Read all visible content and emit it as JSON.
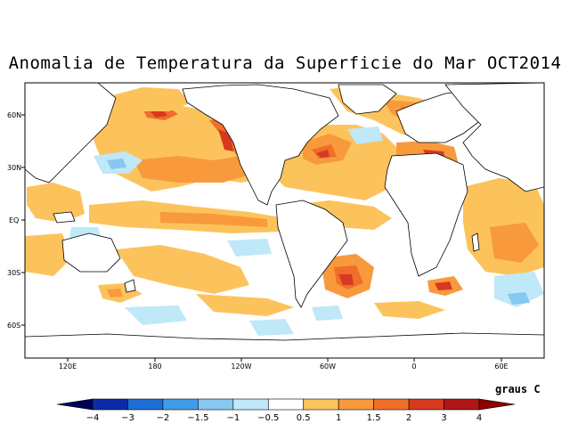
{
  "title": "Anomalia de Temperatura da Superficie do Mar OCT2014",
  "lat_ticks": [
    "60N",
    "30N",
    "EQ",
    "30S",
    "60S"
  ],
  "lon_ticks": [
    "120E",
    "180",
    "120W",
    "60W",
    "0",
    "60E"
  ],
  "units": "graus C",
  "colorbar": {
    "ticks": [
      "−4",
      "−3",
      "−2",
      "−1.5",
      "−1",
      "−0.5",
      "0.5",
      "1",
      "1.5",
      "2",
      "3",
      "4"
    ],
    "colors": [
      "#0a2ca8",
      "#1f6ed6",
      "#3f9de8",
      "#87c8f0",
      "#bfe8f8",
      "#ffffff",
      "#fcc35c",
      "#f89a3c",
      "#f06e28",
      "#d83820",
      "#b01616"
    ],
    "end_low": "#00005a",
    "end_high": "#8b0000"
  },
  "palette": {
    "warm_light": "#fcc35c",
    "warm": "#f89a3c",
    "warm_strong": "#f06e28",
    "hot": "#d83820",
    "cool_light": "#bfe8f8",
    "cool": "#87c8f0"
  }
}
